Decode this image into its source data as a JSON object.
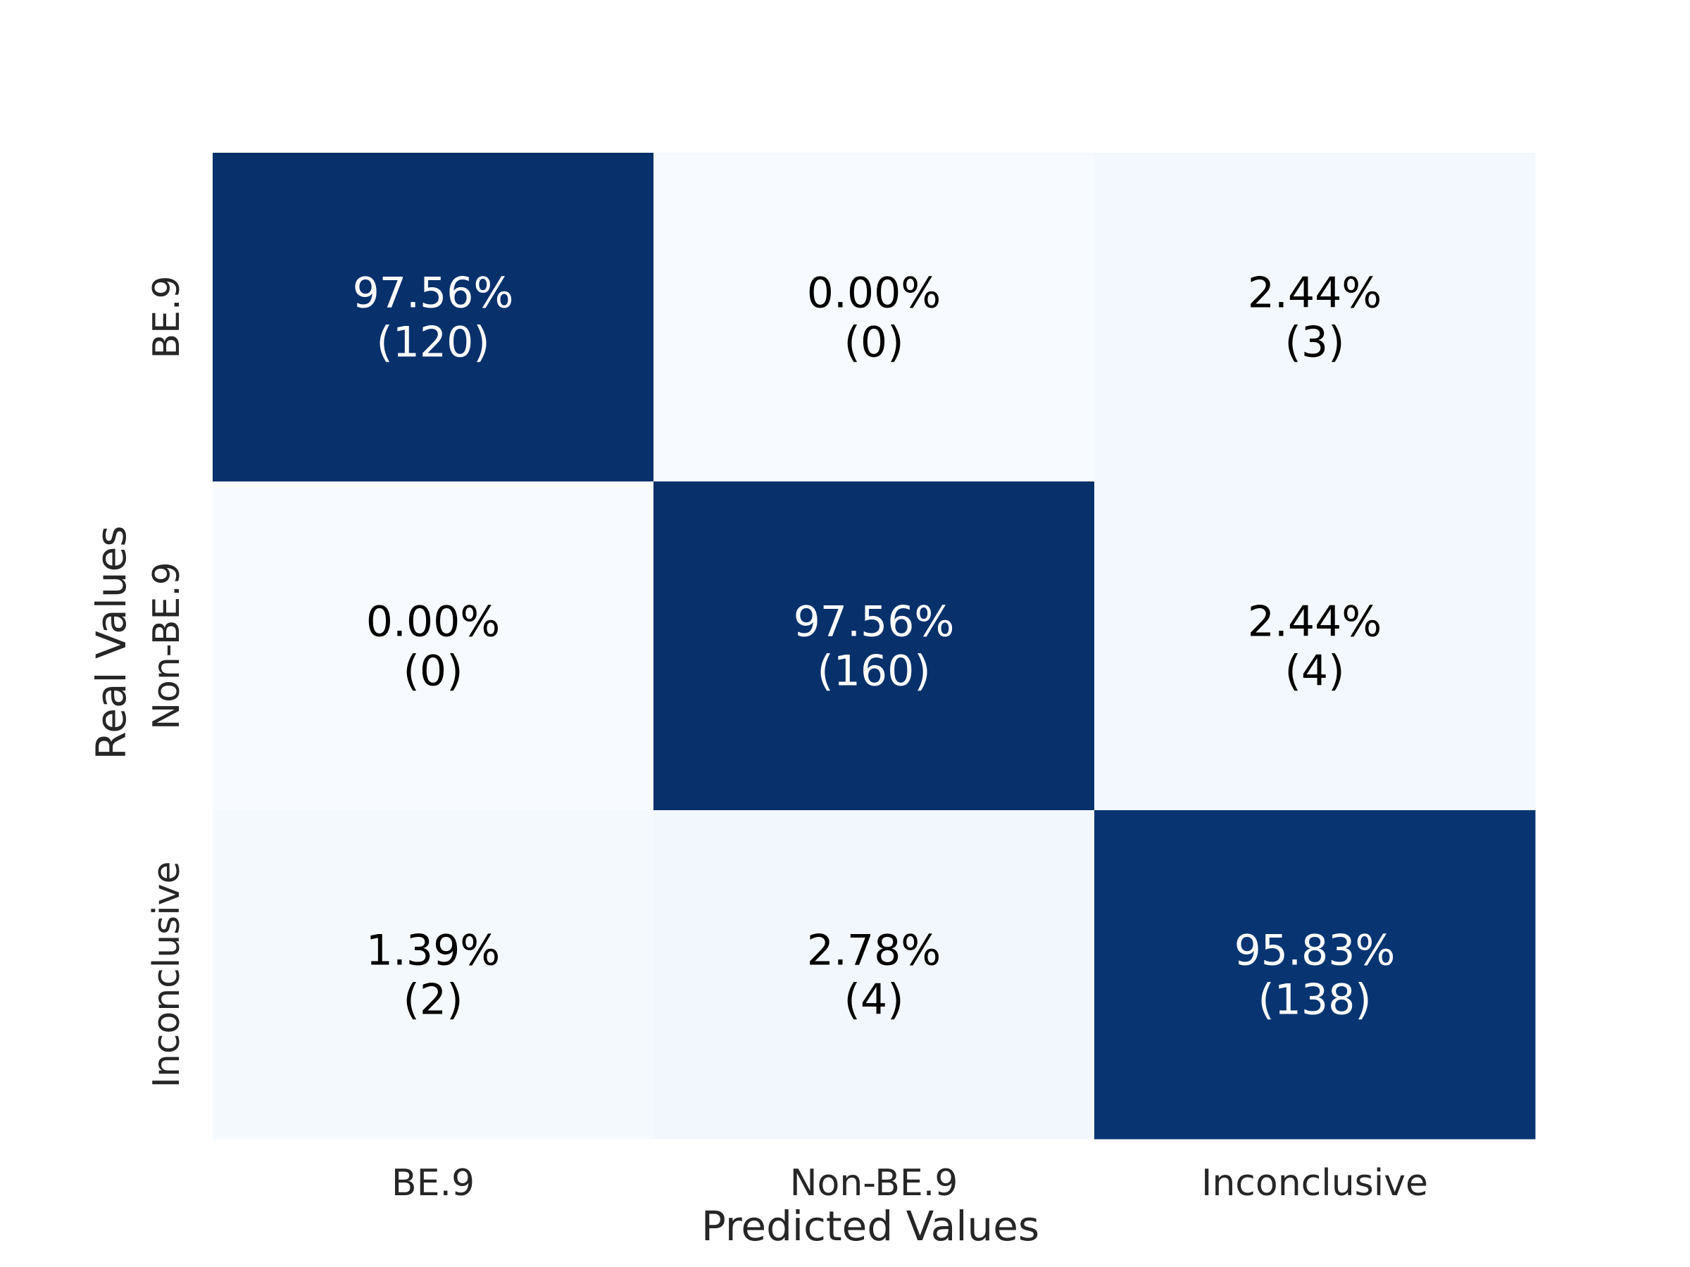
{
  "chart_data": {
    "type": "heatmap",
    "title": "",
    "xlabel": "Predicted Values",
    "ylabel": "Real Values",
    "x_categories": [
      "BE.9",
      "Non-BE.9",
      "Inconclusive"
    ],
    "y_categories": [
      "BE.9",
      "Non-BE.9",
      "Inconclusive"
    ],
    "percentages": [
      [
        "97.56%",
        "0.00%",
        "2.44%"
      ],
      [
        "0.00%",
        "97.56%",
        "2.44%"
      ],
      [
        "1.39%",
        "2.78%",
        "95.83%"
      ]
    ],
    "counts": [
      [
        "(120)",
        "(0)",
        "(3)"
      ],
      [
        "(0)",
        "(160)",
        "(4)"
      ],
      [
        "(2)",
        "(4)",
        "(138)"
      ]
    ],
    "values": [
      [
        97.56,
        0.0,
        2.44
      ],
      [
        0.0,
        97.56,
        2.44
      ],
      [
        1.39,
        2.78,
        95.83
      ]
    ],
    "colormap": "Blues",
    "color_low": "#f7fbff",
    "color_high": "#08306b",
    "colorbar": false
  }
}
